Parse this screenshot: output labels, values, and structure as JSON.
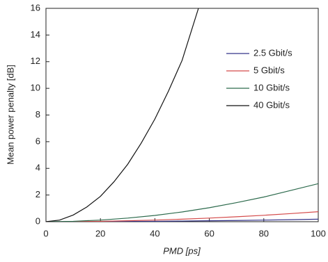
{
  "chart_data": {
    "type": "line",
    "xlabel": "PMD [ps]",
    "ylabel": "Mean power penalty [dB]",
    "xlim": [
      0,
      100
    ],
    "ylim": [
      0,
      16
    ],
    "xticks": [
      0,
      20,
      40,
      60,
      80,
      100
    ],
    "yticks": [
      0,
      2,
      4,
      6,
      8,
      10,
      12,
      14,
      16
    ],
    "grid": false,
    "legend": "upper right",
    "series": [
      {
        "name": "2.5 Gbit/s",
        "color": "#34348a",
        "x": [
          0,
          10,
          20,
          30,
          40,
          50,
          60,
          70,
          80,
          90,
          100
        ],
        "values": [
          0,
          0,
          0.01,
          0.02,
          0.03,
          0.05,
          0.07,
          0.09,
          0.12,
          0.15,
          0.19
        ]
      },
      {
        "name": "5 Gbit/s",
        "color": "#d44a4a",
        "x": [
          0,
          10,
          20,
          30,
          40,
          50,
          60,
          70,
          80,
          90,
          100
        ],
        "values": [
          0,
          0.01,
          0.03,
          0.07,
          0.12,
          0.19,
          0.27,
          0.37,
          0.48,
          0.61,
          0.75
        ]
      },
      {
        "name": "10 Gbit/s",
        "color": "#2c6a4c",
        "x": [
          0,
          10,
          20,
          30,
          40,
          50,
          60,
          70,
          80,
          90,
          100
        ],
        "values": [
          0,
          0.03,
          0.12,
          0.27,
          0.47,
          0.73,
          1.05,
          1.43,
          1.85,
          2.35,
          2.85
        ]
      },
      {
        "name": "40 Gbit/s",
        "color": "#111111",
        "x": [
          0,
          5,
          10,
          15,
          20,
          25,
          30,
          35,
          40,
          45,
          50,
          56
        ],
        "values": [
          0,
          0.12,
          0.5,
          1.1,
          1.9,
          3.0,
          4.3,
          5.9,
          7.7,
          9.8,
          12.1,
          16
        ]
      }
    ]
  }
}
